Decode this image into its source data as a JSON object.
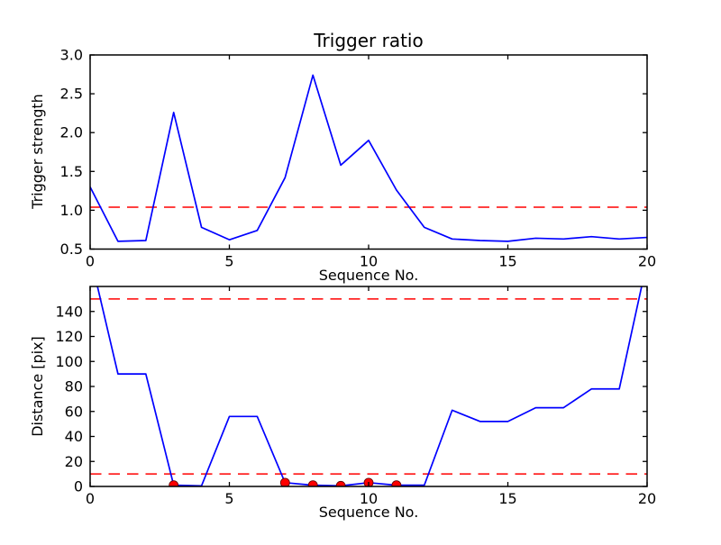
{
  "figure": {
    "title": "Trigger ratio",
    "background_color": "#ffffff",
    "frame_color": "#000000"
  },
  "chart_data": [
    {
      "type": "line",
      "title": "Trigger ratio",
      "xlabel": "Sequence No.",
      "ylabel": "Trigger strength",
      "xlim": [
        0,
        20
      ],
      "ylim": [
        0.5,
        3.0
      ],
      "xticks": [
        0,
        5,
        10,
        15,
        20
      ],
      "xtick_labels": [
        "0",
        "5",
        "10",
        "15",
        "20"
      ],
      "yticks": [
        0.5,
        1.0,
        1.5,
        2.0,
        2.5,
        3.0
      ],
      "ytick_labels": [
        "0.5",
        "1.0",
        "1.5",
        "2.0",
        "2.5",
        "3.0"
      ],
      "grid": false,
      "line_color": "#0000ff",
      "x": [
        0,
        1,
        2,
        3,
        4,
        5,
        6,
        7,
        8,
        9,
        10,
        11,
        12,
        13,
        14,
        15,
        16,
        17,
        18,
        19,
        20
      ],
      "series": [
        {
          "name": "trigger-strength",
          "color": "#0000ff",
          "values": [
            1.3,
            0.6,
            0.61,
            2.26,
            0.78,
            0.62,
            0.74,
            1.42,
            2.74,
            1.58,
            1.9,
            1.26,
            0.78,
            0.63,
            0.61,
            0.6,
            0.64,
            0.63,
            0.66,
            0.63,
            0.65
          ]
        }
      ],
      "thresholds": [
        {
          "value": 1.04,
          "color": "#ff0000",
          "style": "dashed"
        }
      ]
    },
    {
      "type": "line",
      "title": "",
      "xlabel": "Sequence No.",
      "ylabel": "Distance [pix]",
      "xlim": [
        0,
        20
      ],
      "ylim": [
        0,
        160
      ],
      "xticks": [
        0,
        5,
        10,
        15,
        20
      ],
      "xtick_labels": [
        "0",
        "5",
        "10",
        "15",
        "20"
      ],
      "yticks": [
        0,
        20,
        40,
        60,
        80,
        100,
        120,
        140
      ],
      "ytick_labels": [
        "0",
        "20",
        "40",
        "60",
        "80",
        "100",
        "120",
        "140"
      ],
      "grid": false,
      "line_color": "#0000ff",
      "clip_to_axes": true,
      "x": [
        0,
        1,
        2,
        3,
        4,
        5,
        6,
        7,
        8,
        9,
        10,
        11,
        12,
        13,
        14,
        15,
        16,
        17,
        18,
        19,
        20
      ],
      "series": [
        {
          "name": "distance",
          "color": "#0000ff",
          "values": [
            185,
            90,
            90,
            1,
            0.5,
            56,
            56,
            3,
            1,
            0.5,
            3,
            1,
            1,
            61,
            52,
            52,
            63,
            63,
            78,
            78,
            180
          ]
        }
      ],
      "thresholds": [
        {
          "value": 150,
          "color": "#ff0000",
          "style": "dashed"
        },
        {
          "value": 10,
          "color": "#ff0000",
          "style": "dashed"
        }
      ],
      "markers": {
        "name": "trigger-event-points",
        "color": "#ff0000",
        "edge_color": "#5a0000",
        "points": [
          [
            3,
            1
          ],
          [
            7,
            3
          ],
          [
            8,
            1
          ],
          [
            9,
            0.5
          ],
          [
            10,
            3
          ],
          [
            11,
            1
          ]
        ]
      }
    }
  ]
}
